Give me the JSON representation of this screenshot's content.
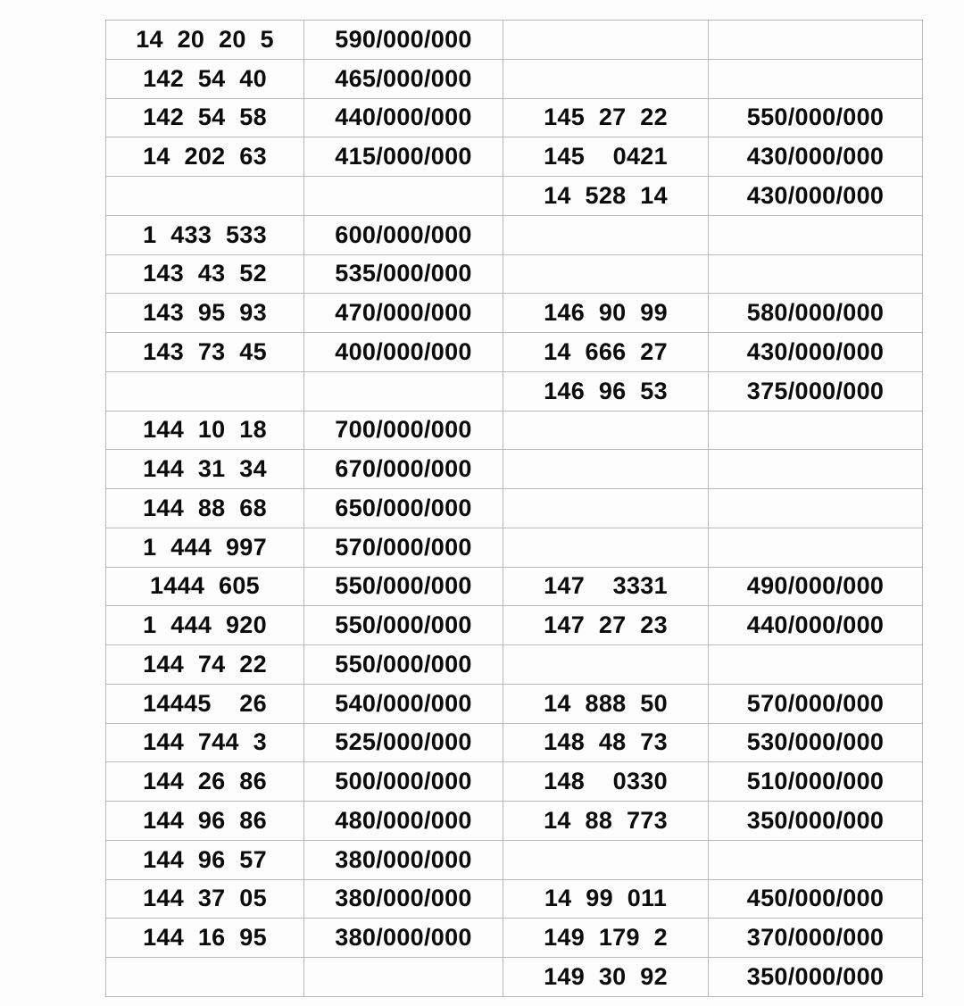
{
  "page": {
    "background_color": "#fdfdfd"
  },
  "table": {
    "border_color": "#b9b9b9",
    "text_color": "#0b0b0b",
    "column_roles": [
      "number",
      "price",
      "number",
      "price"
    ],
    "row_count": 25,
    "rows": [
      [
        "14 20 20 5",
        "590/000/000",
        "",
        ""
      ],
      [
        "142 54 40",
        "465/000/000",
        "",
        ""
      ],
      [
        "142 54 58",
        "440/000/000",
        "145 27 22",
        "550/000/000"
      ],
      [
        "14 202 63",
        "415/000/000",
        "145  0421",
        "430/000/000"
      ],
      [
        "",
        "",
        "14 528 14",
        "430/000/000"
      ],
      [
        "1 433 533",
        "600/000/000",
        "",
        ""
      ],
      [
        "143 43 52",
        "535/000/000",
        "",
        ""
      ],
      [
        "143 95 93",
        "470/000/000",
        "146 90 99",
        "580/000/000"
      ],
      [
        "143 73 45",
        "400/000/000",
        "14 666 27",
        "430/000/000"
      ],
      [
        "",
        "",
        "146 96 53",
        "375/000/000"
      ],
      [
        "144 10 18",
        "700/000/000",
        "",
        ""
      ],
      [
        "144 31 34",
        "670/000/000",
        "",
        ""
      ],
      [
        "144 88 68",
        "650/000/000",
        "",
        ""
      ],
      [
        "1 444 997",
        "570/000/000",
        "",
        ""
      ],
      [
        "1444 605",
        "550/000/000",
        "147  3331",
        "490/000/000"
      ],
      [
        "1 444 920",
        "550/000/000",
        "147 27 23",
        "440/000/000"
      ],
      [
        "144 74 22",
        "550/000/000",
        "",
        ""
      ],
      [
        "14445  26",
        "540/000/000",
        "14 888 50",
        "570/000/000"
      ],
      [
        "144 744 3",
        "525/000/000",
        "148 48 73",
        "530/000/000"
      ],
      [
        "144 26 86",
        "500/000/000",
        "148  0330",
        "510/000/000"
      ],
      [
        "144 96 86",
        "480/000/000",
        "14 88 773",
        "350/000/000"
      ],
      [
        "144 96 57",
        "380/000/000",
        "",
        ""
      ],
      [
        "144 37 05",
        "380/000/000",
        "14 99 011",
        "450/000/000"
      ],
      [
        "144 16 95",
        "380/000/000",
        "149 179 2",
        "370/000/000"
      ],
      [
        "",
        "",
        "149 30 92",
        "350/000/000"
      ]
    ]
  }
}
